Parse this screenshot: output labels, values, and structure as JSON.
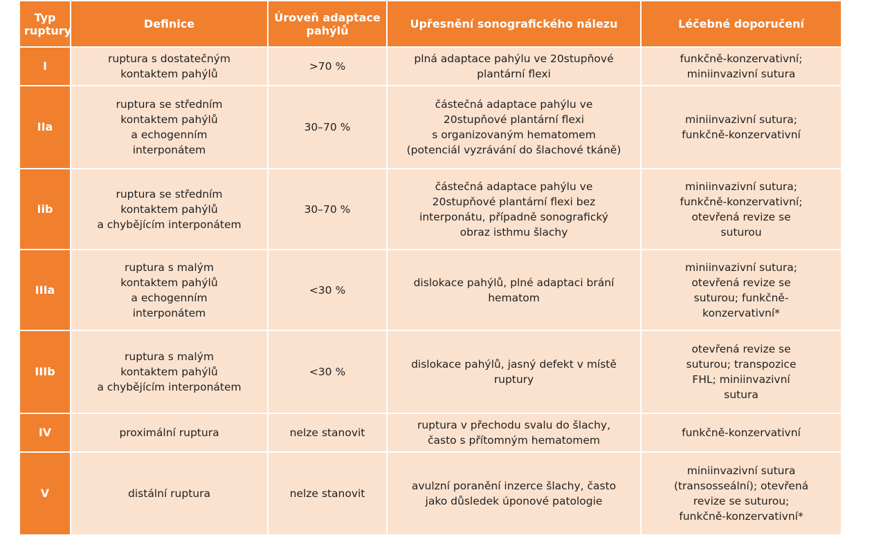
{
  "table": {
    "headers": {
      "type": "Typ\nruptury",
      "definition": "Definice",
      "adaptation": "Úroveň adaptace\npahýlů",
      "sonography": "Upřesnění sonografického nálezu",
      "treatment": "Léčebné doporučení"
    },
    "rows": [
      {
        "type": "I",
        "definition": "ruptura s dostatečným\nkontaktem pahýlů",
        "adaptation": ">70 %",
        "sonography": "plná adaptace pahýlu ve 20stupňové\nplantární flexi",
        "treatment": "funkčně-konzervativní;\nminiinvazivní sutura"
      },
      {
        "type": "IIa",
        "definition": "ruptura se středním\nkontaktem pahýlů\na echogenním\ninterponátem",
        "adaptation": "30–70 %",
        "sonography": "částečná adaptace pahýlu ve\n20stupňové plantární flexi\ns organizovaným hematomem\n(potenciál vyzrávání do šlachové tkáně)",
        "treatment": "miniinvazivní sutura;\nfunkčně-konzervativní"
      },
      {
        "type": "Iib",
        "definition": "ruptura se středním\nkontaktem pahýlů\na chybějícím interponátem",
        "adaptation": "30–70 %",
        "sonography": "částečná adaptace pahýlu ve\n20stupňové plantární flexi bez\ninterponátu, případně sonografický\nobraz isthmu šlachy",
        "treatment": "miniinvazivní sutura;\nfunkčně-konzervativní;\notevřená revize se\nsuturou"
      },
      {
        "type": "IIIa",
        "definition": "ruptura s malým\nkontaktem pahýlů\na echogenním\ninterponátem",
        "adaptation": "<30 %",
        "sonography": "dislokace pahýlů, plné adaptaci brání\nhematom",
        "treatment": "miniinvazivní sutura;\notevřená revize se\nsuturou; funkčně-\nkonzervativní*"
      },
      {
        "type": "IIIb",
        "definition": "ruptura s malým\nkontaktem pahýlů\na chybějícím interponátem",
        "adaptation": "<30 %",
        "sonography": "dislokace pahýlů, jasný defekt v místě\nruptury",
        "treatment": "otevřená revize se\nsuturou; transpozice\nFHL; miniinvazivní\nsutura"
      },
      {
        "type": "IV",
        "definition": "proximální ruptura",
        "adaptation": "nelze stanovit",
        "sonography": "ruptura v přechodu svalu do šlachy,\nčasto s přítomným hematomem",
        "treatment": "funkčně-konzervativní"
      },
      {
        "type": "V",
        "definition": "distální ruptura",
        "adaptation": "nelze stanovit",
        "sonography": "avulzní poranění inzerce šlachy, často\njako důsledek úponové patologie",
        "treatment": "miniinvazivní sutura\n(transosseální); otevřená\nrevize se suturou;\nfunkčně-konzervativní*"
      }
    ]
  },
  "colors": {
    "header_bg": "#f07f2e",
    "row_bg": "#fbe2cf",
    "grid": "#ffffff"
  }
}
